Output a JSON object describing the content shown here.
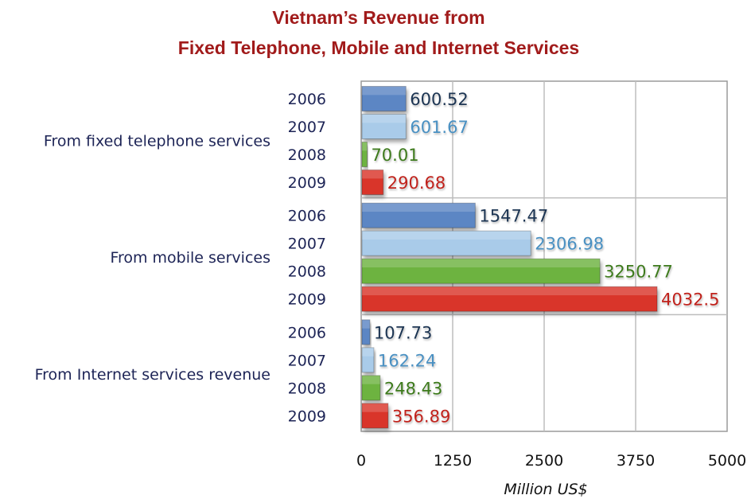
{
  "chart_data": {
    "type": "bar",
    "orientation": "horizontal",
    "title_lines": [
      "Vietnam’s Revenue from",
      "Fixed Telephone, Mobile and Internet Services"
    ],
    "xlabel": "Million US$",
    "ylabel": "",
    "xlim": [
      0,
      5000
    ],
    "xticks": [
      "0",
      "1250",
      "2500",
      "3750",
      "5000"
    ],
    "grid": true,
    "series_names": [
      "2006",
      "2007",
      "2008",
      "2009"
    ],
    "groups": [
      {
        "label": "From fixed telephone services",
        "bars": [
          {
            "year": "2006",
            "value": 600.52,
            "label": "600.52"
          },
          {
            "year": "2007",
            "value": 601.67,
            "label": "601.67"
          },
          {
            "year": "2008",
            "value": 70.01,
            "label": "70.01"
          },
          {
            "year": "2009",
            "value": 290.68,
            "label": "290.68"
          }
        ]
      },
      {
        "label": "From mobile services",
        "bars": [
          {
            "year": "2006",
            "value": 1547.47,
            "label": "1547.47"
          },
          {
            "year": "2007",
            "value": 2306.98,
            "label": "2306.98"
          },
          {
            "year": "2008",
            "value": 3250.77,
            "label": "3250.77"
          },
          {
            "year": "2009",
            "value": 4032.5,
            "label": "4032.5"
          }
        ]
      },
      {
        "label": "From Internet services revenue",
        "bars": [
          {
            "year": "2006",
            "value": 107.73,
            "label": "107.73"
          },
          {
            "year": "2007",
            "value": 162.24,
            "label": "162.24"
          },
          {
            "year": "2008",
            "value": 248.43,
            "label": "248.43"
          },
          {
            "year": "2009",
            "value": 356.89,
            "label": "356.89"
          }
        ]
      }
    ],
    "colors": {
      "2006": "#5b86c4",
      "2007": "#a9cbe9",
      "2008": "#6db33f",
      "2009": "#d9362c",
      "label_2006": "#1f3552",
      "label_2007": "#4a90c2",
      "label_2008": "#3e7a1c",
      "label_2009": "#c0241c",
      "title": "#a11b1b",
      "grid": "#bdbdbd"
    }
  }
}
